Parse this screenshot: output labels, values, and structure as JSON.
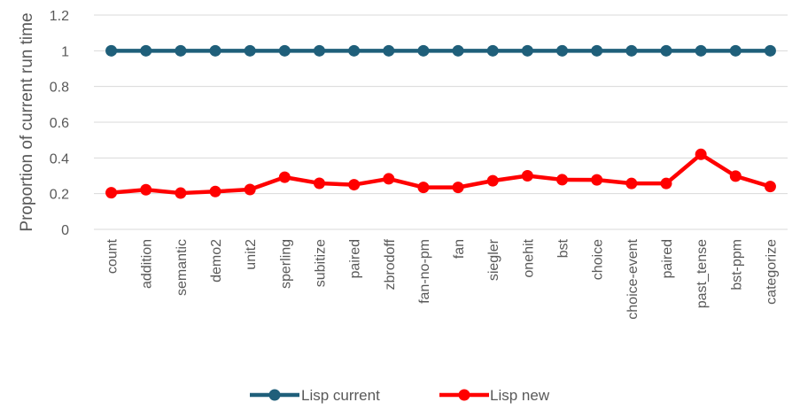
{
  "chart_data": {
    "type": "line",
    "title": "",
    "xlabel": "",
    "ylabel": "Proportion of current run time",
    "ylim": [
      0,
      1.2
    ],
    "yticks": [
      "0",
      "0.2",
      "0.4",
      "0.6",
      "0.8",
      "1",
      "1.2"
    ],
    "grid": true,
    "legend_position": "bottom",
    "categories": [
      "count",
      "addition",
      "semantic",
      "demo2",
      "unit2",
      "sperling",
      "subitize",
      "paired",
      "zbrodoff",
      "fan-no-pm",
      "fan",
      "siegler",
      "onehit",
      "bst",
      "choice",
      "choice-event",
      "paired",
      "past_tense",
      "bst-ppm",
      "categorize"
    ],
    "series": [
      {
        "name": "Lisp current",
        "color": "#1f5f7a",
        "values": [
          1,
          1,
          1,
          1,
          1,
          1,
          1,
          1,
          1,
          1,
          1,
          1,
          1,
          1,
          1,
          1,
          1,
          1,
          1,
          1
        ]
      },
      {
        "name": "Lisp new",
        "color": "#ff0000",
        "values": [
          0.205,
          0.222,
          0.203,
          0.212,
          0.223,
          0.292,
          0.258,
          0.25,
          0.283,
          0.235,
          0.235,
          0.272,
          0.3,
          0.278,
          0.277,
          0.257,
          0.257,
          0.42,
          0.298,
          0.24
        ]
      }
    ]
  }
}
